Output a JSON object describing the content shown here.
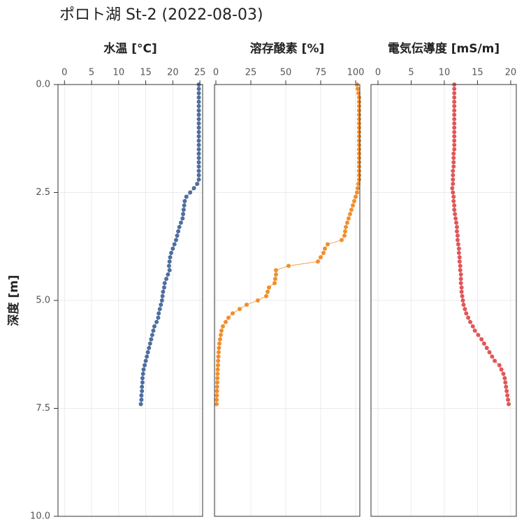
{
  "title": "ポロト湖 St-2 (2022-08-03)",
  "ylabel": "深度 [m]",
  "ylim": [
    0,
    10
  ],
  "y_reversed": true,
  "yticks": [
    {
      "value": 0,
      "label": "0.0"
    },
    2.5,
    {
      "value": 5,
      "label": "5.0"
    },
    7.5,
    {
      "value": 10,
      "label": "10.0"
    }
  ],
  "grid": true,
  "chart_data": [
    {
      "type": "line",
      "title": "水温 [°C]",
      "color": "#4e6e9e",
      "xlim": [
        -1.2,
        25.5
      ],
      "xticks": [
        0,
        5,
        10,
        15,
        20,
        25
      ],
      "y": [
        0,
        0.1,
        0.2,
        0.3,
        0.4,
        0.5,
        0.6,
        0.7,
        0.8,
        0.9,
        1,
        1.1,
        1.2,
        1.3,
        1.4,
        1.5,
        1.6,
        1.7,
        1.8,
        1.9,
        2,
        2.1,
        2.2,
        2.3,
        2.4,
        2.5,
        2.6,
        2.7,
        2.8,
        2.9,
        3,
        3.1,
        3.2,
        3.3,
        3.4,
        3.5,
        3.6,
        3.7,
        3.8,
        3.9,
        4,
        4.1,
        4.2,
        4.3,
        4.4,
        4.5,
        4.6,
        4.7,
        4.8,
        4.9,
        5,
        5.1,
        5.2,
        5.3,
        5.4,
        5.5,
        5.6,
        5.7,
        5.8,
        5.9,
        6,
        6.1,
        6.2,
        6.3,
        6.4,
        6.5,
        6.6,
        6.7,
        6.8,
        6.9,
        7,
        7.1,
        7.2,
        7.3,
        7.4
      ],
      "x": [
        24.8,
        24.8,
        24.8,
        24.8,
        24.8,
        24.8,
        24.8,
        24.8,
        24.8,
        24.8,
        24.8,
        24.8,
        24.8,
        24.8,
        24.8,
        24.8,
        24.8,
        24.8,
        24.8,
        24.8,
        24.8,
        24.8,
        24.8,
        24.5,
        23.9,
        23.2,
        22.5,
        22.2,
        22.1,
        22.0,
        21.9,
        21.8,
        21.5,
        21.2,
        21.0,
        20.8,
        20.6,
        20.3,
        20.0,
        19.7,
        19.5,
        19.4,
        19.3,
        19.4,
        19.1,
        18.8,
        18.5,
        18.4,
        18.2,
        18.1,
        18.0,
        17.8,
        17.6,
        17.4,
        17.3,
        17.0,
        16.6,
        16.4,
        16.2,
        16.0,
        15.8,
        15.6,
        15.4,
        15.2,
        15.0,
        14.8,
        14.6,
        14.5,
        14.4,
        14.4,
        14.3,
        14.3,
        14.2,
        14.2,
        14.1
      ]
    },
    {
      "type": "line",
      "title": "溶存酸素 [%]",
      "color": "#f28e2b",
      "xlim": [
        -1,
        103
      ],
      "xticks": [
        0,
        25,
        50,
        75,
        100
      ],
      "y": [
        0,
        0.1,
        0.2,
        0.3,
        0.4,
        0.5,
        0.6,
        0.7,
        0.8,
        0.9,
        1,
        1.1,
        1.2,
        1.3,
        1.4,
        1.5,
        1.6,
        1.7,
        1.8,
        1.9,
        2,
        2.1,
        2.2,
        2.3,
        2.4,
        2.5,
        2.6,
        2.7,
        2.8,
        2.9,
        3,
        3.1,
        3.2,
        3.3,
        3.4,
        3.5,
        3.6,
        3.7,
        3.8,
        3.9,
        4,
        4.1,
        4.2,
        4.3,
        4.4,
        4.5,
        4.6,
        4.7,
        4.8,
        4.9,
        5,
        5.1,
        5.2,
        5.3,
        5.4,
        5.5,
        5.6,
        5.7,
        5.8,
        5.9,
        6,
        6.1,
        6.2,
        6.3,
        6.4,
        6.5,
        6.6,
        6.7,
        6.8,
        6.9,
        7,
        7.1,
        7.2,
        7.3,
        7.4
      ],
      "x": [
        101,
        101.5,
        102,
        102.5,
        102.5,
        102.5,
        102.5,
        102.5,
        102.5,
        102.5,
        102.5,
        102.5,
        102.5,
        102.5,
        102.5,
        102.5,
        102.5,
        102.5,
        102.5,
        102.5,
        102.5,
        102.5,
        102.5,
        102,
        101.5,
        101,
        100,
        99,
        98,
        97,
        96,
        95,
        94,
        93,
        92.5,
        92,
        90,
        80,
        78,
        77,
        75,
        73,
        52,
        43,
        43,
        42.5,
        42,
        38,
        37,
        36,
        30,
        22,
        17,
        12,
        9,
        7,
        5,
        4,
        3.5,
        3,
        2.5,
        2.2,
        2,
        1.8,
        1.6,
        1.5,
        1.3,
        1.2,
        1.1,
        1,
        0.9,
        0.8,
        0.7,
        0.6,
        0.5
      ]
    },
    {
      "type": "line",
      "title": "電気伝導度 [mS/m]",
      "color": "#e15759",
      "xlim": [
        -1.05,
        20.85
      ],
      "xticks": [
        0,
        5,
        10,
        15,
        20
      ],
      "y": [
        0,
        0.1,
        0.2,
        0.3,
        0.4,
        0.5,
        0.6,
        0.7,
        0.8,
        0.9,
        1,
        1.1,
        1.2,
        1.3,
        1.4,
        1.5,
        1.6,
        1.7,
        1.8,
        1.9,
        2,
        2.1,
        2.2,
        2.3,
        2.4,
        2.5,
        2.6,
        2.7,
        2.8,
        2.9,
        3,
        3.1,
        3.2,
        3.3,
        3.4,
        3.5,
        3.6,
        3.7,
        3.8,
        3.9,
        4,
        4.1,
        4.2,
        4.3,
        4.4,
        4.5,
        4.6,
        4.7,
        4.8,
        4.9,
        5,
        5.1,
        5.2,
        5.3,
        5.4,
        5.5,
        5.6,
        5.7,
        5.8,
        5.9,
        6,
        6.1,
        6.2,
        6.3,
        6.4,
        6.5,
        6.6,
        6.7,
        6.8,
        6.9,
        7,
        7.1,
        7.2,
        7.3,
        7.4
      ],
      "x": [
        11.5,
        11.5,
        11.5,
        11.5,
        11.5,
        11.5,
        11.5,
        11.5,
        11.5,
        11.5,
        11.5,
        11.5,
        11.5,
        11.5,
        11.5,
        11.5,
        11.4,
        11.4,
        11.4,
        11.4,
        11.3,
        11.3,
        11.3,
        11.3,
        11.2,
        11.3,
        11.4,
        11.4,
        11.5,
        11.5,
        11.6,
        11.7,
        11.8,
        11.9,
        11.9,
        12.0,
        12.0,
        12.1,
        12.2,
        12.2,
        12.3,
        12.3,
        12.4,
        12.4,
        12.5,
        12.5,
        12.5,
        12.6,
        12.6,
        12.7,
        12.8,
        12.9,
        13.1,
        13.3,
        13.6,
        13.9,
        14.3,
        14.6,
        15.1,
        15.6,
        16.0,
        16.4,
        16.8,
        17.2,
        17.6,
        18.3,
        18.6,
        18.9,
        19.1,
        19.2,
        19.3,
        19.4,
        19.5,
        19.6,
        19.7
      ]
    }
  ]
}
